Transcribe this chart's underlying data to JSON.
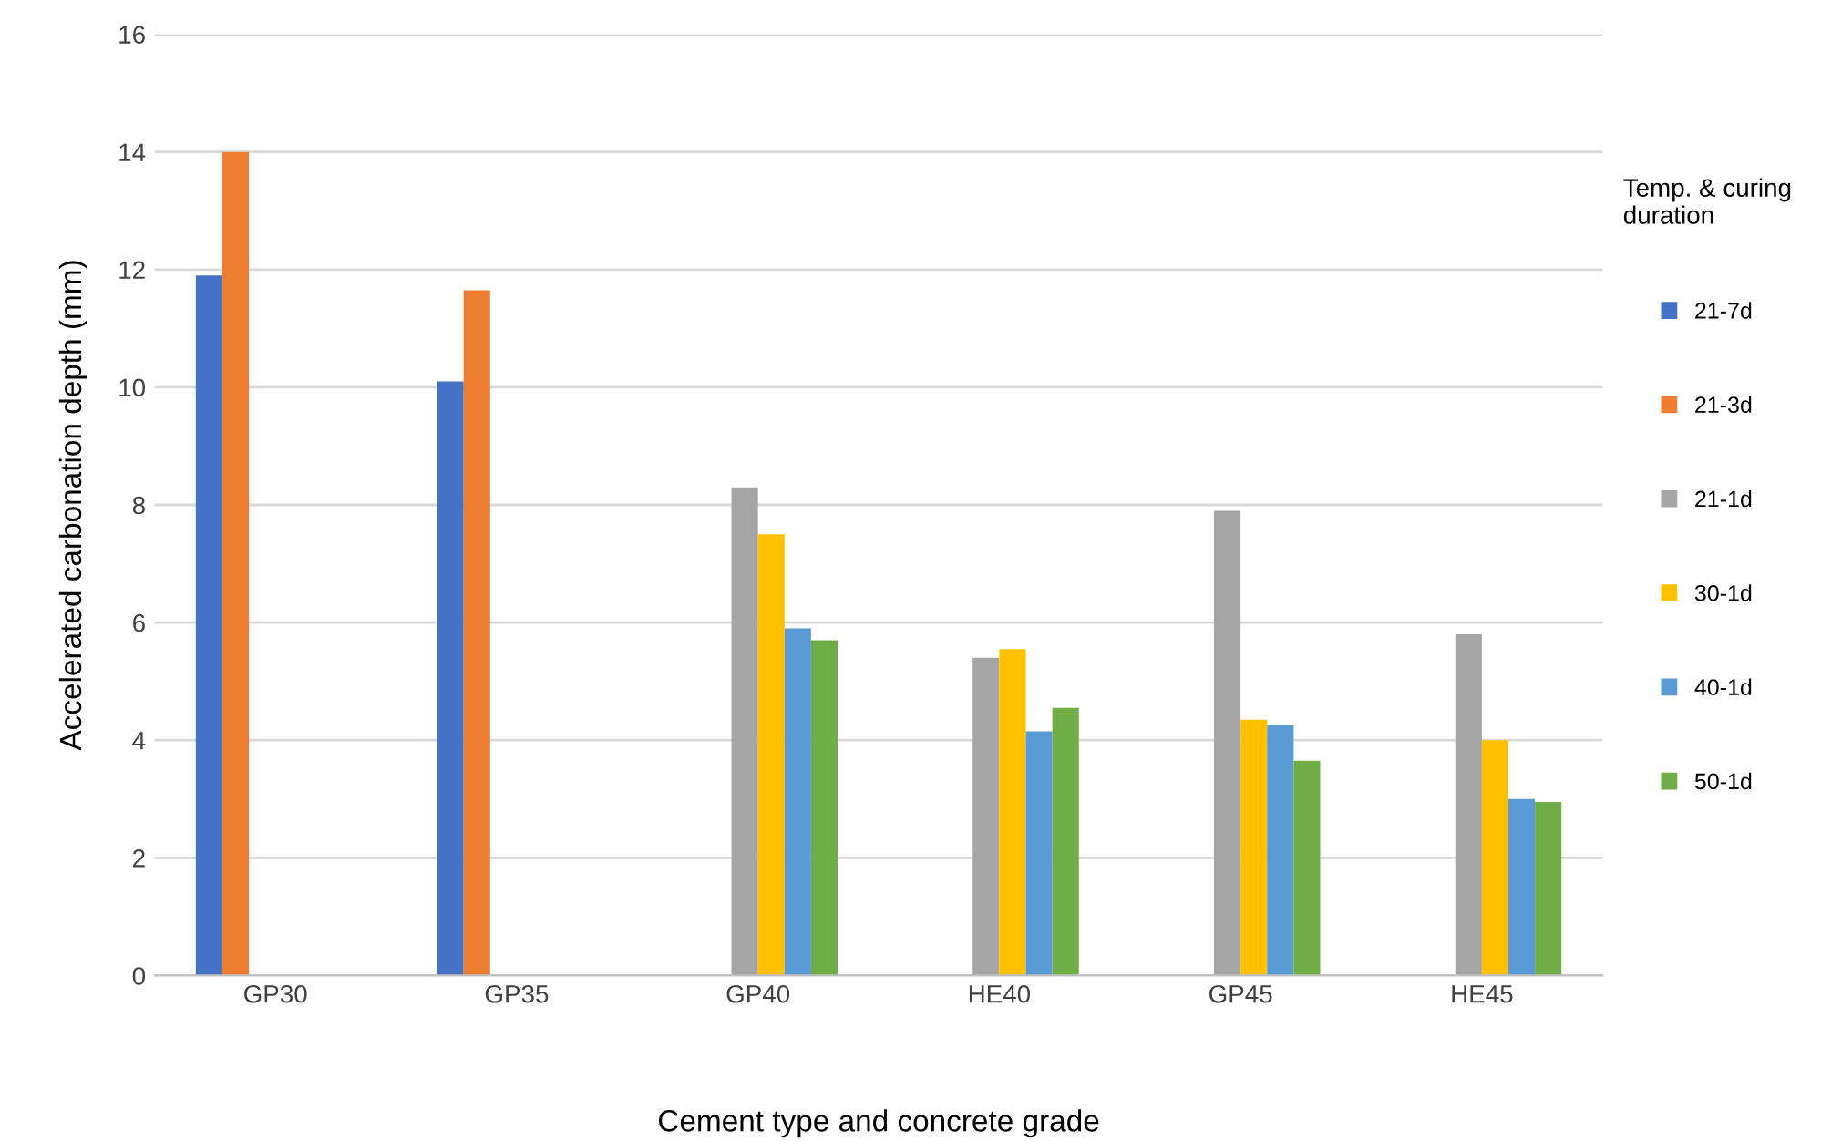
{
  "chart_data": {
    "type": "bar",
    "xlabel": "Cement type and concrete grade",
    "ylabel": "Accelerated carbonation depth (mm)",
    "legend_title": "Temp. & curing\nduration",
    "categories": [
      "GP30",
      "GP35",
      "GP40",
      "HE40",
      "GP45",
      "HE45"
    ],
    "series": [
      {
        "name": "21-7d",
        "color": "#4472c4",
        "values": [
          11.9,
          10.1,
          null,
          null,
          null,
          null
        ]
      },
      {
        "name": "21-3d",
        "color": "#ed7d31",
        "values": [
          14.0,
          11.65,
          null,
          null,
          null,
          null
        ]
      },
      {
        "name": "21-1d",
        "color": "#a5a5a5",
        "values": [
          null,
          null,
          8.3,
          5.4,
          7.9,
          5.8
        ]
      },
      {
        "name": "30-1d",
        "color": "#ffc000",
        "values": [
          null,
          null,
          7.5,
          5.55,
          4.35,
          4.0
        ]
      },
      {
        "name": "40-1d",
        "color": "#5b9bd5",
        "values": [
          null,
          null,
          5.9,
          4.15,
          4.25,
          3.0
        ]
      },
      {
        "name": "50-1d",
        "color": "#70ad47",
        "values": [
          null,
          null,
          5.7,
          4.55,
          3.65,
          2.95
        ]
      }
    ],
    "ylim": [
      0,
      16
    ],
    "yticks": [
      0,
      2,
      4,
      6,
      8,
      10,
      12,
      14,
      16
    ],
    "grid": "y",
    "legend": "right"
  }
}
